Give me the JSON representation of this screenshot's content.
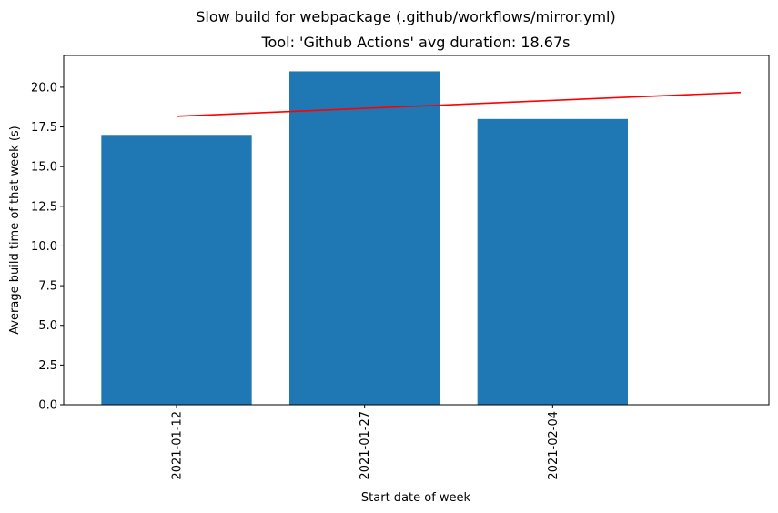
{
  "chart_data": {
    "type": "bar",
    "suptitle": "Slow build for webpackage (.github/workflows/mirror.yml)",
    "title": "Tool: 'Github Actions' avg duration: 18.67s",
    "xlabel": "Start date of week",
    "ylabel": "Average build time of that week (s)",
    "categories": [
      "2021-01-12",
      "2021-01-27",
      "2021-02-04"
    ],
    "values": [
      17,
      21,
      18
    ],
    "ylim": [
      0,
      22
    ],
    "yticks": [
      0,
      2.5,
      5,
      7.5,
      10,
      12.5,
      15,
      17.5,
      20
    ],
    "ytick_labels": [
      "0.0",
      "2.5",
      "5.0",
      "7.5",
      "10.0",
      "12.5",
      "15.0",
      "17.5",
      "20.0"
    ],
    "bar_color": "#1f77b4",
    "trend_line": {
      "color": "#ff0000",
      "x": [
        0,
        3
      ],
      "y": [
        18.17,
        19.67
      ]
    },
    "grid": false,
    "legend": "none"
  }
}
